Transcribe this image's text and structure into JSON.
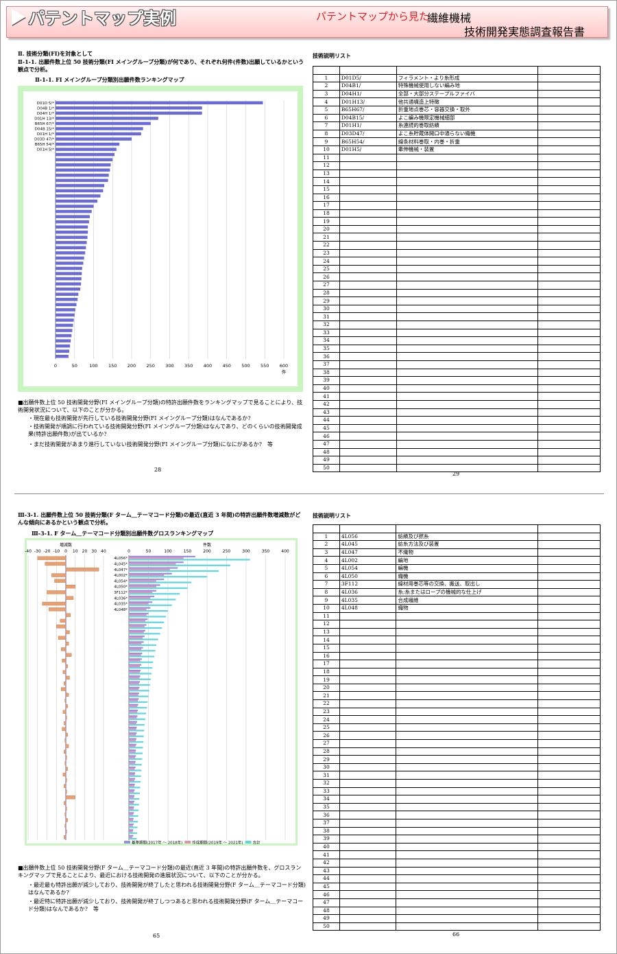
{
  "header": {
    "title": "パテントマップ実例",
    "subtitle": "パテントマップから見た",
    "field": "繊維機械",
    "report": "技術開発実態調査報告書"
  },
  "page28": {
    "section": "Ⅱ. 技術分類(FI)を対象として",
    "heading": "Ⅱ-1-1. 出願件数上位 50 技術分類(FI メイングループ分類)が何であり、それぞれ何件(件数)出願しているかという観点で分析。",
    "chart": {
      "type": "bar",
      "title": "Ⅱ-1-1. FI メイングループ分類別出願件数ランキングマップ",
      "categories": [
        "D01D 5/*",
        "D04B 1/*",
        "D04H 1/*",
        "D01H 13/*",
        "B65H 67/*",
        "D04B 15/*",
        "D01H 1/*",
        "D03D 47/*",
        "B65H 54/*",
        "D01H 5/*",
        null,
        null,
        null,
        null,
        null,
        null,
        null,
        null,
        null,
        null,
        null,
        null,
        null,
        null,
        null,
        null,
        null,
        null,
        null,
        null,
        null,
        null,
        null,
        null,
        null,
        null,
        null,
        null,
        null,
        null,
        null,
        null,
        null,
        null,
        null,
        null,
        null,
        null,
        null,
        null
      ],
      "values": [
        545,
        385,
        385,
        270,
        250,
        230,
        225,
        200,
        168,
        160,
        155,
        150,
        145,
        143,
        140,
        138,
        128,
        125,
        118,
        110,
        100,
        95,
        90,
        88,
        85,
        85,
        84,
        82,
        80,
        78,
        75,
        73,
        70,
        69,
        68,
        67,
        65,
        60,
        58,
        55,
        52,
        50,
        48,
        46,
        44,
        42,
        40,
        38,
        36,
        34
      ],
      "color": "#6b6bd8",
      "xlim": [
        0,
        600
      ],
      "xticks": [
        0,
        50,
        100,
        150,
        200,
        250,
        300,
        350,
        400,
        450,
        500,
        550,
        600
      ],
      "x_label": "件",
      "grid": true
    },
    "summary": "■出願件数上位 50 技術開発分野(FI メイングループ分類)の特許出願件数をランキングマップで見ることにより、技術開発状況について、以下のことが分かる。",
    "points": [
      "・現在最も技術開発が先行している技術開発分野(FI メイングループ分類)はなんであるか?",
      "・技術開発が順調に行われている技術開発分野(FI メイングループ分類)はなんであり、どのくらいの技術開発成果(特許出願件数)が出ているか?",
      "・まだ技術開発があまり進行していない技術開発分野(FI メイングループ分類)になにがあるか?　等"
    ],
    "page_number": 28
  },
  "page29": {
    "title": "技術説明リスト",
    "table": {
      "numbers": [
        1,
        2,
        3,
        4,
        5,
        6,
        7,
        8,
        9,
        10,
        11,
        12,
        13,
        14,
        15,
        16,
        17,
        18,
        19,
        20,
        21,
        22,
        23,
        24,
        25,
        26,
        27,
        28,
        29,
        30,
        31,
        32,
        33,
        34,
        35,
        36,
        37,
        38,
        39,
        40,
        41,
        42,
        43,
        44,
        45,
        46,
        47,
        48,
        49,
        50
      ],
      "entries": [
        [
          "D01D5/",
          "フィラメント・より糸形成"
        ],
        [
          "D04B1/",
          "特殊機械使用しない編み地"
        ],
        [
          "D04H1/",
          "全部・大部分ステープルファイバ"
        ],
        [
          "D01H13/",
          "他共通構造上特徴"
        ],
        [
          "B65H67/",
          "折重地点巻芯・容器交換・取外"
        ],
        [
          "D04B15/",
          "よこ編み機限定機械細部"
        ],
        [
          "D01H1/",
          "糸連続的巻取紡績"
        ],
        [
          "D03D47/",
          "よこ糸貯蔵体開口中通らない織機"
        ],
        [
          "B65H54/",
          "線条材料巻取・内巻・折重"
        ],
        [
          "D01H5/",
          "牽伸機械・装置"
        ]
      ]
    },
    "page_number": 29
  },
  "page65": {
    "heading": "Ⅲ-3-1. 出願件数上位 50 技術分類(F ターム＿テーマコード分類)の最近(直近 3 年間)の特許出願件数増減数がどんな傾向にあるかという観点で分析。",
    "chart": {
      "type": "gross-ranking",
      "title": "Ⅲ-3-1. F ターム＿テーマコード分類別出願件数グロスランキングマップ",
      "categories": [
        "4L056*",
        "4L045*",
        "4L047*",
        "4L002*",
        "4L054*",
        "4L050*",
        "3F112*",
        "4L036*",
        "4L035*",
        "4L048*",
        null,
        null,
        null,
        null,
        null,
        null,
        null,
        null,
        null,
        null,
        null,
        null,
        null,
        null,
        null,
        null,
        null,
        null,
        null,
        null,
        null,
        null,
        null,
        null,
        null,
        null,
        null,
        null,
        null,
        null,
        null,
        null,
        null,
        null,
        null,
        null,
        null,
        null,
        null,
        null
      ],
      "change": {
        "label": "増減数",
        "xlim": [
          -40,
          40
        ],
        "xticks": [
          -40,
          -30,
          -20,
          -10,
          0,
          10,
          20,
          30,
          40
        ],
        "color": "#e8a070",
        "values": [
          -30,
          -22,
          35,
          -15,
          -12,
          10,
          -20,
          8,
          -25,
          -18,
          5,
          -6,
          -10,
          4,
          -8,
          3,
          -5,
          6,
          -4,
          2,
          -3,
          4,
          -2,
          -5,
          3,
          -1,
          2,
          -3,
          1,
          -2,
          -4,
          2,
          -1,
          3,
          -2,
          1,
          -1,
          2,
          -3,
          1,
          -2,
          1,
          10,
          -2,
          1,
          -1,
          2,
          -1,
          1,
          -2
        ]
      },
      "count": {
        "label": "件数",
        "xlim": [
          0,
          400
        ],
        "xticks": [
          0,
          50,
          100,
          150,
          200,
          250,
          300,
          350,
          400
        ],
        "series": [
          {
            "name": "基準期間(2017年 ～ 2018年)",
            "color": "#9a8ee0",
            "values": [
              170,
              140,
              125,
              110,
              90,
              80,
              70,
              65,
              60,
              55,
              50,
              48,
              45,
              42,
              40,
              38,
              36,
              34,
              33,
              32,
              30,
              29,
              28,
              27,
              26,
              25,
              24,
              23,
              22,
              21,
              20,
              20,
              19,
              19,
              18,
              18,
              17,
              17,
              16,
              16,
              15,
              15,
              14,
              14,
              13,
              13,
              12,
              12,
              11,
              11
            ]
          },
          {
            "name": "作成期間(2019年 ～ 2021年)",
            "color": "#e58fb5",
            "values": [
              140,
              120,
              105,
              90,
              70,
              70,
              60,
              55,
              50,
              45,
              45,
              42,
              40,
              38,
              35,
              32,
              32,
              31,
              29,
              28,
              28,
              27,
              26,
              25,
              24,
              23,
              22,
              21,
              20,
              19,
              19,
              18,
              18,
              17,
              17,
              16,
              16,
              15,
              15,
              14,
              14,
              13,
              13,
              12,
              12,
              11,
              11,
              10,
              10,
              9
            ]
          },
          {
            "name": "合計",
            "color": "#5fd6e0",
            "values": [
              310,
              260,
              230,
              200,
              160,
              150,
              130,
              120,
              110,
              100,
              95,
              90,
              85,
              80,
              75,
              70,
              68,
              65,
              62,
              60,
              58,
              56,
              54,
              52,
              50,
              48,
              46,
              44,
              42,
              40,
              39,
              38,
              37,
              36,
              35,
              34,
              33,
              32,
              31,
              30,
              29,
              28,
              27,
              26,
              25,
              24,
              23,
              22,
              21,
              20
            ]
          }
        ]
      },
      "grid": true
    },
    "summary": "■出願件数上位 50 技術開発分野(F ターム＿テーマコード分類)の最近(直近 3 年間)の特許出願件数を、グロスランキングマップで見ることにより、最近における技術開発の進展状況について、以下のことが分かる。",
    "points": [
      "・最近最も特許出願が減少しており、技術開発が終了したと思われる技術開発分野(F ターム＿テーマコード分類)はなんであるか?",
      "・最近特に特許出願が減少しており、技術開発が終了しつつあると思われる技術開発分野(F ターム＿テーマコード分類)はなんであるか?　等"
    ],
    "page_number": 65
  },
  "page66": {
    "title": "技術説明リスト",
    "table": {
      "numbers": [
        1,
        2,
        3,
        4,
        5,
        6,
        7,
        8,
        9,
        10,
        11,
        12,
        13,
        14,
        15,
        16,
        17,
        18,
        19,
        20,
        21,
        22,
        23,
        24,
        25,
        26,
        27,
        28,
        29,
        30,
        31,
        32,
        33,
        34,
        35,
        36,
        37,
        38,
        39,
        40,
        41,
        42,
        43,
        44,
        45,
        46,
        47,
        48,
        49,
        50
      ],
      "entries": [
        [
          "4L056",
          "紡績及び撚糸"
        ],
        [
          "4L045",
          "紡糸方法及び装置"
        ],
        [
          "4L047",
          "不織物"
        ],
        [
          "4L002",
          "編地"
        ],
        [
          "4L054",
          "編機"
        ],
        [
          "4L050",
          "織機"
        ],
        [
          "3F112",
          "線材用巻芯等の交換、搬送、取出し"
        ],
        [
          "4L036",
          "糸;糸またはロープの機械的な仕上げ"
        ],
        [
          "4L035",
          "合成繊維"
        ],
        [
          "4L048",
          "織物"
        ]
      ]
    },
    "page_number": 66
  }
}
